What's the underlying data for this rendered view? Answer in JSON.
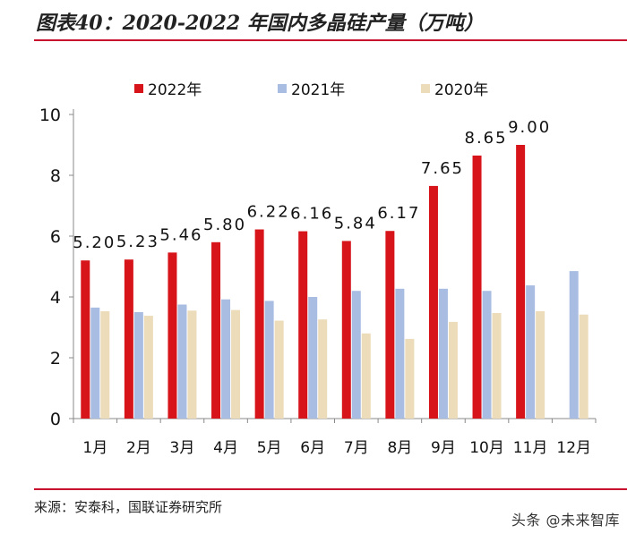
{
  "title": "图表40：2020-2022 年国内多晶硅产量（万吨）",
  "source": "来源：安泰科，国联证券研究所",
  "watermark": "头条 @未来智库",
  "colors": {
    "accent": "#c8102e"
  },
  "chart_data": {
    "type": "bar",
    "title": "",
    "xlabel": "",
    "ylabel": "",
    "ylim": [
      0,
      10
    ],
    "yticks": [
      "0",
      "2",
      "4",
      "6",
      "8",
      "10"
    ],
    "grid": false,
    "legend_position": "top",
    "categories": [
      "1月",
      "2月",
      "3月",
      "4月",
      "5月",
      "6月",
      "7月",
      "8月",
      "9月",
      "10月",
      "11月",
      "12月"
    ],
    "series": [
      {
        "name": "2022年",
        "color": "#d7141a",
        "values": [
          5.2,
          5.23,
          5.46,
          5.8,
          6.22,
          6.16,
          5.84,
          6.17,
          7.65,
          8.65,
          9.0,
          null
        ],
        "labels": [
          "5.20",
          "5.23",
          "5.46",
          "5.80",
          "6.22",
          "6.16",
          "5.84",
          "6.17",
          "7.65",
          "8.65",
          "9.00",
          ""
        ]
      },
      {
        "name": "2021年",
        "color": "#a9bde3",
        "values": [
          3.65,
          3.5,
          3.75,
          3.92,
          3.87,
          4.0,
          4.2,
          4.27,
          4.27,
          4.2,
          4.38,
          4.85
        ]
      },
      {
        "name": "2020年",
        "color": "#ecdcb9",
        "values": [
          3.53,
          3.38,
          3.55,
          3.57,
          3.22,
          3.26,
          2.8,
          2.62,
          3.18,
          3.47,
          3.53,
          3.42
        ]
      }
    ]
  }
}
